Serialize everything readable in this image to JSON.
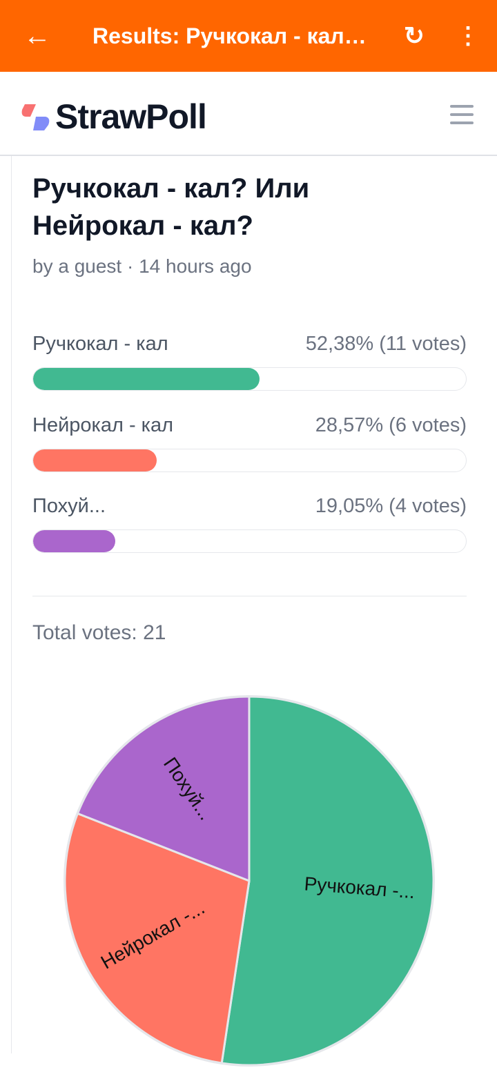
{
  "appbar": {
    "title": "Results: Ручкокал - кал? Или Нейрокал - кал?",
    "back_icon": "arrow-left-icon",
    "refresh_icon": "refresh-icon",
    "more_icon": "more-vertical-icon"
  },
  "site": {
    "logo": "StrawPoll",
    "menu_icon": "hamburger-menu-icon"
  },
  "poll": {
    "title": "Ручкокал - кал? Или Нейрокал - кал?",
    "meta": "by a guest · 14 hours ago",
    "options": [
      {
        "label": "Ручкокал - кал",
        "result": "52,38% (11 votes)",
        "percent": 52.38,
        "color": "#41b991"
      },
      {
        "label": "Нейрокал - кал",
        "result": "28,57% (6 votes)",
        "percent": 28.57,
        "color": "#ff7563"
      },
      {
        "label": "Похуй...",
        "result": "19,05% (4 votes)",
        "percent": 19.05,
        "color": "#aa66cc"
      }
    ],
    "total": "Total votes: 21"
  },
  "chart_data": {
    "type": "pie",
    "categories": [
      "Ручкокал - кал",
      "Нейрокал - кал",
      "Похуй..."
    ],
    "values": [
      11,
      6,
      4
    ],
    "labels": [
      "Ручкокал -...",
      "Нейрокал -...",
      "Похуй..."
    ],
    "colors": [
      "#41b991",
      "#ff7563",
      "#aa66cc"
    ]
  }
}
